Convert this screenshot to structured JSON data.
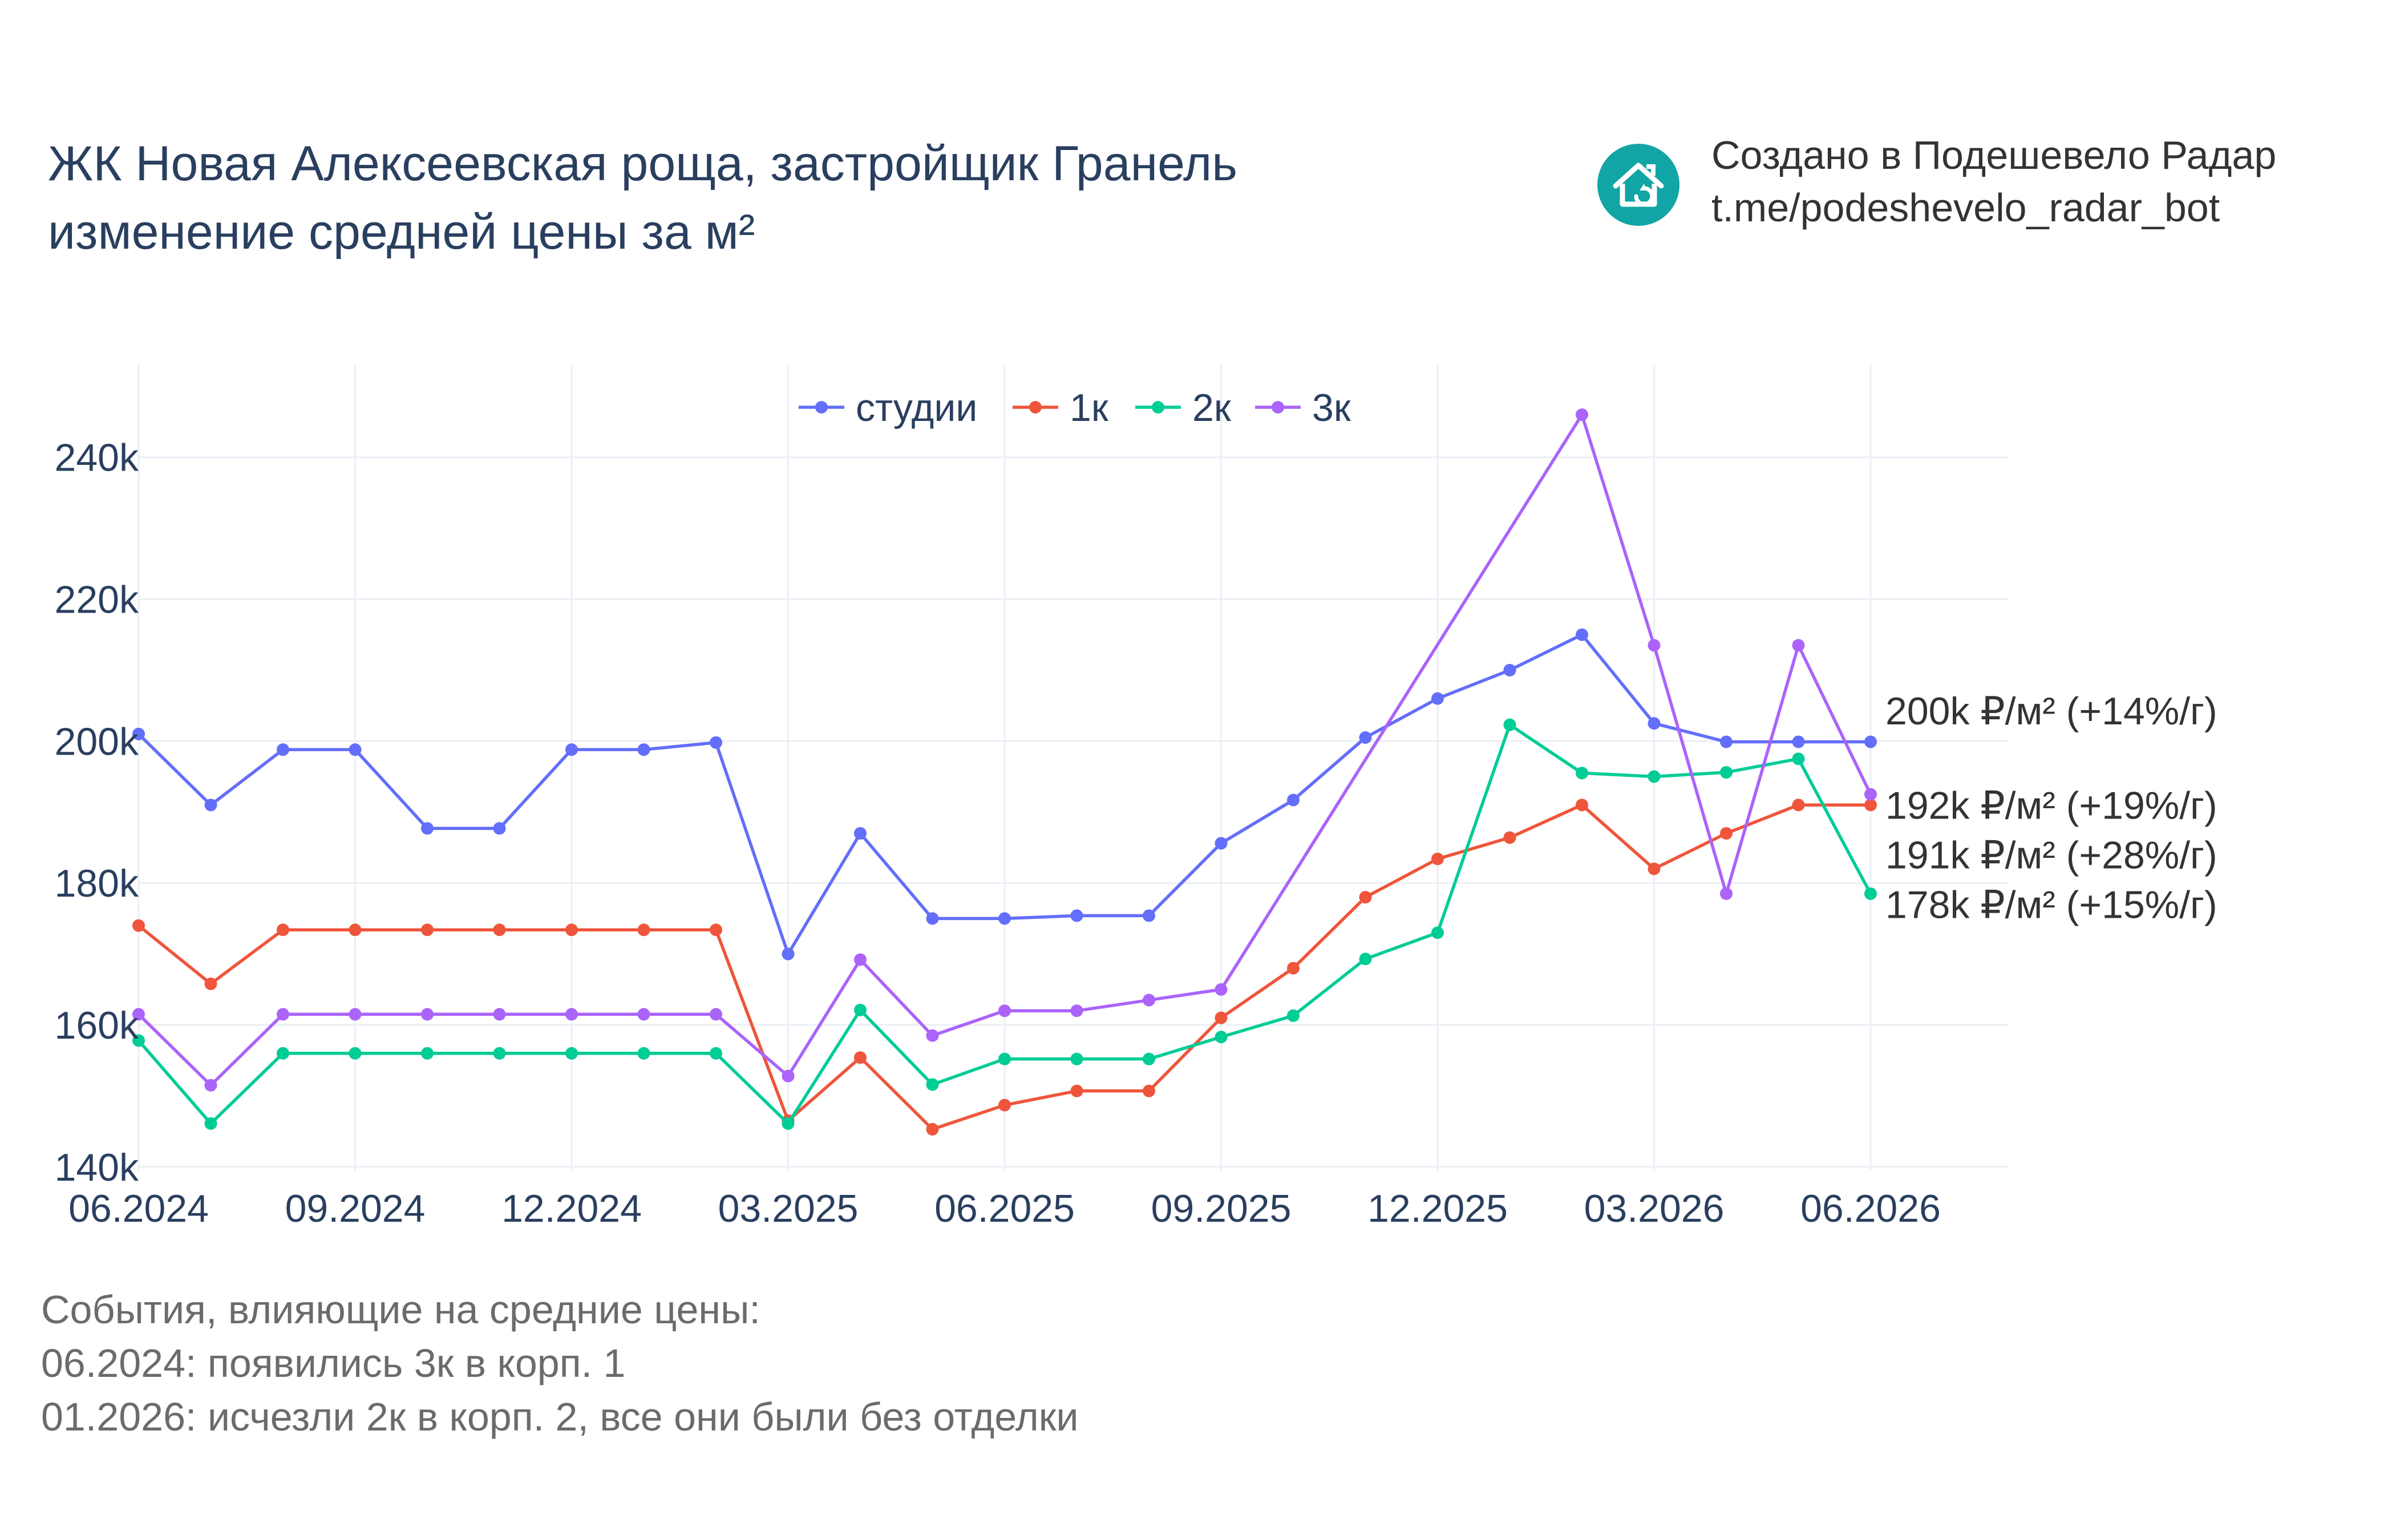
{
  "header": {
    "title_line1": "ЖК Новая Алексеевская роща, застройщик Гранель",
    "title_line2": "изменение средней цены за м²",
    "credit_line1": "Создано в Подешевело Радар",
    "credit_line2": "t.me/podeshevelo_radar_bot",
    "logo_icon": "house-logo-icon",
    "logo_color": "#12a5a5"
  },
  "notes": {
    "heading": "События, влияющие на средние цены:",
    "items": [
      "06.2024: появились 3к в корп. 1",
      "01.2026: исчезли 2к в корп. 2, все они были без отделки"
    ]
  },
  "chart_data": {
    "type": "line",
    "x": [
      "06.2024",
      "07.2024",
      "08.2024",
      "09.2024",
      "10.2024",
      "11.2024",
      "12.2024",
      "01.2025",
      "02.2025",
      "03.2025",
      "04.2025",
      "05.2025",
      "06.2025",
      "07.2025",
      "08.2025",
      "09.2025",
      "10.2025",
      "11.2025",
      "12.2025",
      "01.2026",
      "02.2026",
      "03.2026",
      "04.2026",
      "05.2026",
      "06.2026"
    ],
    "x_ticks": [
      "06.2024",
      "09.2024",
      "12.2024",
      "03.2025",
      "06.2025",
      "09.2025",
      "12.2025",
      "03.2026",
      "06.2026"
    ],
    "y_ticks": [
      140000,
      160000,
      180000,
      200000,
      220000,
      240000
    ],
    "y_tick_labels": [
      "140k",
      "160k",
      "180k",
      "200k",
      "220k",
      "240k"
    ],
    "ylim": [
      139500,
      253000
    ],
    "grid": true,
    "legend_position": "top-center",
    "series": [
      {
        "name": "студии",
        "color": "#636efa",
        "values": [
          201000,
          191000,
          198800,
          198800,
          187700,
          187700,
          198800,
          198800,
          199800,
          170000,
          187000,
          175000,
          175000,
          175400,
          175400,
          185600,
          191700,
          200500,
          206000,
          210000,
          215000,
          202500,
          199900,
          199900,
          199900
        ]
      },
      {
        "name": "1к",
        "color": "#ef553b",
        "values": [
          174000,
          165800,
          173400,
          173400,
          173400,
          173400,
          173400,
          173400,
          173400,
          146500,
          155400,
          145300,
          148700,
          150700,
          150700,
          161000,
          168000,
          178000,
          183400,
          186400,
          191000,
          182000,
          187000,
          191000,
          191000
        ]
      },
      {
        "name": "2к",
        "color": "#00cc96",
        "values": [
          157800,
          146100,
          156000,
          156000,
          156000,
          156000,
          156000,
          156000,
          156000,
          146100,
          162100,
          151600,
          155200,
          155200,
          155200,
          158300,
          161300,
          169300,
          173000,
          202300,
          195500,
          195000,
          195600,
          197500,
          178500
        ]
      },
      {
        "name": "3к",
        "color": "#ab63fa",
        "values": [
          161500,
          151500,
          161500,
          161500,
          161500,
          161500,
          161500,
          161500,
          161500,
          152800,
          169200,
          158500,
          162000,
          162000,
          163500,
          165000,
          null,
          null,
          null,
          null,
          246000,
          213500,
          178500,
          213500,
          192500
        ]
      }
    ],
    "annotations": [
      {
        "text": "200k ₽/м² (+14%/г)",
        "value": 204300
      },
      {
        "text": "192k ₽/м² (+19%/г)",
        "value": 191000
      },
      {
        "text": "191k ₽/м² (+28%/г)",
        "value": 184000
      },
      {
        "text": "178k ₽/м² (+15%/г)",
        "value": 177000
      }
    ]
  }
}
